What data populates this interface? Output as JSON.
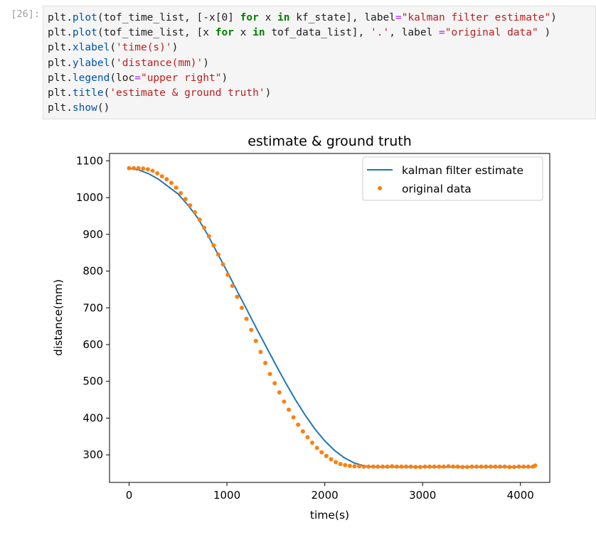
{
  "cell": {
    "prompt": "[26]:",
    "code_lines": [
      "plt.plot(tof_time_list, [-x[0] for x in kf_state], label=\"kalman filter estimate\")",
      "plt.plot(tof_time_list, [x for x in tof_data_list], '.', label =\"original data\" )",
      "plt.xlabel('time(s)')",
      "plt.ylabel('distance(mm)')",
      "plt.legend(loc=\"upper right\")",
      "plt.title('estimate & ground truth')",
      "plt.show()"
    ]
  },
  "chart_data": {
    "type": "line",
    "title": "estimate & ground truth",
    "xlabel": "time(s)",
    "ylabel": "distance(mm)",
    "xlim": [
      -200,
      4300
    ],
    "ylim": [
      225,
      1120
    ],
    "xticks": [
      0,
      1000,
      2000,
      3000,
      4000
    ],
    "yticks": [
      300,
      400,
      500,
      600,
      700,
      800,
      900,
      1000,
      1100
    ],
    "grid": false,
    "legend_position": "upper right",
    "colors": {
      "estimate": "#1f77b4",
      "data": "#ff7f0e"
    },
    "series": [
      {
        "name": "kalman filter estimate",
        "style": "line",
        "x": [
          0,
          100,
          200,
          300,
          400,
          500,
          600,
          700,
          800,
          900,
          1000,
          1100,
          1200,
          1300,
          1400,
          1500,
          1600,
          1700,
          1800,
          1900,
          2000,
          2100,
          2200,
          2300,
          2400,
          2450,
          2500,
          2600,
          2800,
          3000,
          3200,
          3400,
          3600,
          3800,
          4000,
          4150
        ],
        "y": [
          1080,
          1075,
          1065,
          1050,
          1030,
          1010,
          980,
          945,
          900,
          850,
          800,
          748,
          697,
          645,
          595,
          545,
          496,
          450,
          408,
          370,
          338,
          312,
          292,
          278,
          270,
          268,
          267,
          267,
          267,
          267,
          267,
          267,
          267,
          267,
          267,
          267
        ]
      },
      {
        "name": "original data",
        "style": "points",
        "x": [
          0,
          48,
          96,
          144,
          192,
          240,
          288,
          336,
          384,
          432,
          480,
          528,
          576,
          624,
          672,
          720,
          768,
          816,
          864,
          912,
          960,
          1008,
          1056,
          1104,
          1152,
          1200,
          1248,
          1296,
          1344,
          1392,
          1440,
          1488,
          1536,
          1584,
          1632,
          1680,
          1728,
          1776,
          1824,
          1872,
          1920,
          1968,
          2016,
          2064,
          2112,
          2160,
          2208,
          2256,
          2304,
          2352,
          2400,
          2448,
          2496,
          2544,
          2592,
          2640,
          2688,
          2736,
          2784,
          2832,
          2880,
          2928,
          2976,
          3024,
          3072,
          3120,
          3168,
          3216,
          3264,
          3312,
          3360,
          3408,
          3456,
          3504,
          3552,
          3600,
          3648,
          3696,
          3744,
          3792,
          3840,
          3888,
          3936,
          3984,
          4032,
          4080,
          4128,
          4150
        ],
        "y": [
          1080,
          1080,
          1080,
          1079,
          1077,
          1073,
          1066,
          1058,
          1050,
          1040,
          1027,
          1012,
          996,
          979,
          960,
          940,
          918,
          895,
          870,
          845,
          818,
          790,
          760,
          730,
          700,
          670,
          640,
          610,
          580,
          550,
          520,
          495,
          470,
          445,
          423,
          402,
          382,
          364,
          348,
          333,
          319,
          307,
          297,
          288,
          280,
          275,
          272,
          270,
          269,
          269,
          268,
          268,
          268,
          268,
          268,
          268,
          269,
          268,
          268,
          268,
          268,
          267,
          267,
          268,
          268,
          268,
          268,
          268,
          269,
          268,
          268,
          267,
          267,
          268,
          268,
          268,
          268,
          268,
          268,
          268,
          268,
          267,
          267,
          268,
          268,
          268,
          268,
          271
        ]
      }
    ]
  }
}
